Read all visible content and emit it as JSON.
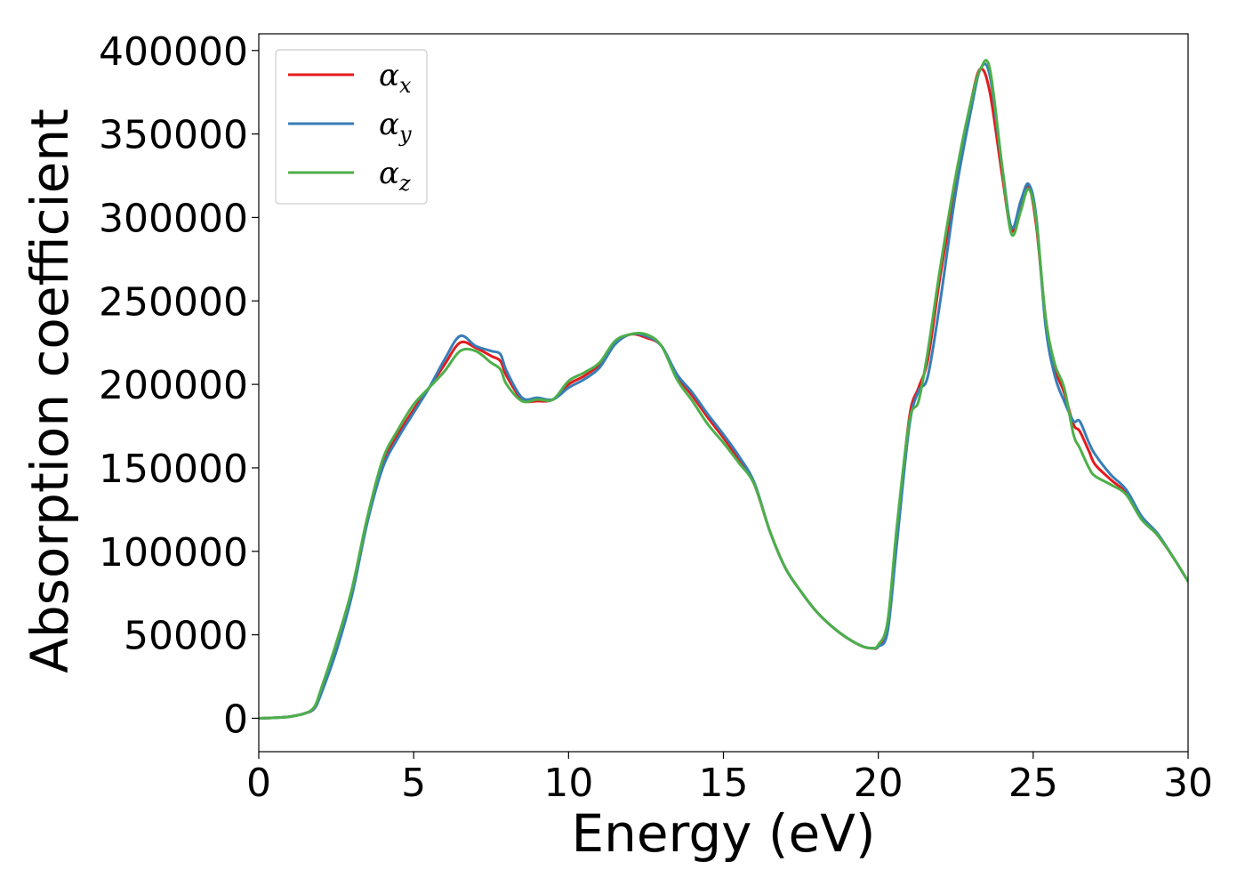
{
  "chart_data": {
    "type": "line",
    "xlabel": "Energy (eV)",
    "ylabel": "Absorption coefficient",
    "xlim": [
      0,
      30
    ],
    "ylim": [
      -20000,
      410000
    ],
    "xticks": [
      0,
      5,
      10,
      15,
      20,
      25,
      30
    ],
    "yticks": [
      0,
      50000,
      100000,
      150000,
      200000,
      250000,
      300000,
      350000,
      400000
    ],
    "xtick_labels": [
      "0",
      "5",
      "10",
      "15",
      "20",
      "25",
      "30"
    ],
    "ytick_labels": [
      "0",
      "50000",
      "100000",
      "150000",
      "200000",
      "250000",
      "300000",
      "350000",
      "400000"
    ],
    "grid": false,
    "legend_position": "top-left",
    "series": [
      {
        "name": "αx",
        "legend_base": "α",
        "legend_sub": "x",
        "color": "#e41a1c",
        "x": [
          0,
          0.5,
          1.0,
          1.5,
          1.8,
          2.0,
          2.5,
          3.0,
          3.5,
          4.0,
          4.5,
          5.0,
          5.5,
          6.0,
          6.5,
          7.0,
          7.5,
          7.8,
          8.0,
          8.5,
          9.0,
          9.5,
          10.0,
          10.5,
          11.0,
          11.5,
          12.0,
          12.5,
          13.0,
          13.5,
          14.0,
          14.5,
          15.0,
          15.5,
          16.0,
          16.5,
          17.0,
          17.5,
          18.0,
          18.5,
          19.0,
          19.5,
          19.8,
          20.0,
          20.3,
          20.6,
          21.0,
          21.3,
          21.6,
          22.0,
          22.5,
          23.0,
          23.3,
          23.6,
          24.0,
          24.3,
          24.6,
          24.85,
          25.1,
          25.4,
          25.7,
          26.0,
          26.3,
          26.5,
          26.8,
          27.0,
          27.5,
          28.0,
          28.5,
          29.0,
          29.5,
          30.0
        ],
        "y": [
          0,
          300,
          1000,
          3000,
          6000,
          15000,
          42000,
          75000,
          118000,
          152000,
          170000,
          185000,
          198000,
          212000,
          225000,
          222000,
          217000,
          214000,
          205000,
          191000,
          190000,
          191000,
          200000,
          205000,
          212000,
          225000,
          230000,
          228000,
          223000,
          205000,
          193000,
          180000,
          168000,
          155000,
          140000,
          112000,
          90000,
          76000,
          64000,
          55000,
          48000,
          43000,
          42000,
          43000,
          55000,
          110000,
          180000,
          198000,
          215000,
          265000,
          320000,
          370000,
          389000,
          375000,
          325000,
          292000,
          307000,
          319000,
          295000,
          240000,
          210000,
          195000,
          176000,
          172000,
          160000,
          152000,
          143000,
          135000,
          120000,
          110000,
          97000,
          82000
        ]
      },
      {
        "name": "αy",
        "legend_base": "α",
        "legend_sub": "y",
        "color": "#377eb8",
        "x": [
          0,
          0.5,
          1.0,
          1.5,
          1.8,
          2.0,
          2.5,
          3.0,
          3.5,
          4.0,
          4.5,
          5.0,
          5.5,
          6.0,
          6.5,
          7.0,
          7.5,
          7.8,
          8.0,
          8.5,
          9.0,
          9.5,
          10.0,
          10.5,
          11.0,
          11.5,
          12.0,
          12.5,
          13.0,
          13.5,
          14.0,
          14.5,
          15.0,
          15.5,
          16.0,
          16.5,
          17.0,
          17.5,
          18.0,
          18.5,
          19.0,
          19.5,
          19.8,
          20.0,
          20.3,
          20.6,
          21.0,
          21.3,
          21.6,
          22.0,
          22.5,
          23.0,
          23.3,
          23.6,
          24.0,
          24.3,
          24.6,
          24.85,
          25.1,
          25.4,
          25.7,
          26.0,
          26.3,
          26.5,
          26.8,
          27.0,
          27.5,
          28.0,
          28.5,
          29.0,
          29.5,
          30.0
        ],
        "y": [
          0,
          300,
          1000,
          3000,
          6000,
          14000,
          40000,
          73000,
          117000,
          150000,
          168000,
          183000,
          198000,
          215000,
          229000,
          223000,
          220000,
          218000,
          208000,
          192000,
          192000,
          191000,
          198000,
          203000,
          210000,
          224000,
          230000,
          229000,
          223000,
          206000,
          195000,
          182000,
          170000,
          157000,
          141000,
          112000,
          90000,
          76000,
          64000,
          55000,
          48000,
          43000,
          42000,
          43000,
          52000,
          105000,
          175000,
          196000,
          205000,
          250000,
          315000,
          365000,
          389000,
          385000,
          330000,
          294000,
          310000,
          320000,
          300000,
          235000,
          205000,
          190000,
          178000,
          178000,
          165000,
          158000,
          146000,
          137000,
          121000,
          111000,
          97000,
          82000
        ]
      },
      {
        "name": "αz",
        "legend_base": "α",
        "legend_sub": "z",
        "color": "#4daf4a",
        "x": [
          0,
          0.5,
          1.0,
          1.5,
          1.8,
          2.0,
          2.5,
          3.0,
          3.5,
          4.0,
          4.5,
          5.0,
          5.5,
          6.0,
          6.5,
          7.0,
          7.5,
          7.8,
          8.0,
          8.5,
          9.0,
          9.5,
          10.0,
          10.5,
          11.0,
          11.5,
          12.0,
          12.5,
          13.0,
          13.5,
          14.0,
          14.5,
          15.0,
          15.5,
          16.0,
          16.5,
          17.0,
          17.5,
          18.0,
          18.5,
          19.0,
          19.5,
          19.8,
          20.0,
          20.3,
          20.6,
          21.0,
          21.3,
          21.6,
          22.0,
          22.5,
          23.0,
          23.3,
          23.6,
          24.0,
          24.3,
          24.6,
          24.85,
          25.1,
          25.4,
          25.7,
          26.0,
          26.3,
          26.5,
          26.8,
          27.0,
          27.5,
          28.0,
          28.5,
          29.0,
          29.5,
          30.0
        ],
        "y": [
          0,
          300,
          1000,
          3000,
          7000,
          17000,
          45000,
          77000,
          120000,
          155000,
          173000,
          188000,
          198000,
          208000,
          220000,
          220000,
          213000,
          209000,
          200000,
          190000,
          191000,
          191000,
          202000,
          207000,
          213000,
          226000,
          230000,
          230000,
          223000,
          203000,
          190000,
          176000,
          165000,
          153000,
          140000,
          112000,
          90000,
          76000,
          64000,
          55000,
          48000,
          43000,
          42000,
          44000,
          58000,
          115000,
          178000,
          190000,
          220000,
          270000,
          325000,
          370000,
          389000,
          389000,
          330000,
          290000,
          304000,
          317000,
          298000,
          240000,
          212000,
          198000,
          170000,
          162000,
          150000,
          145000,
          140000,
          134000,
          119000,
          110000,
          97000,
          82000
        ]
      }
    ]
  }
}
